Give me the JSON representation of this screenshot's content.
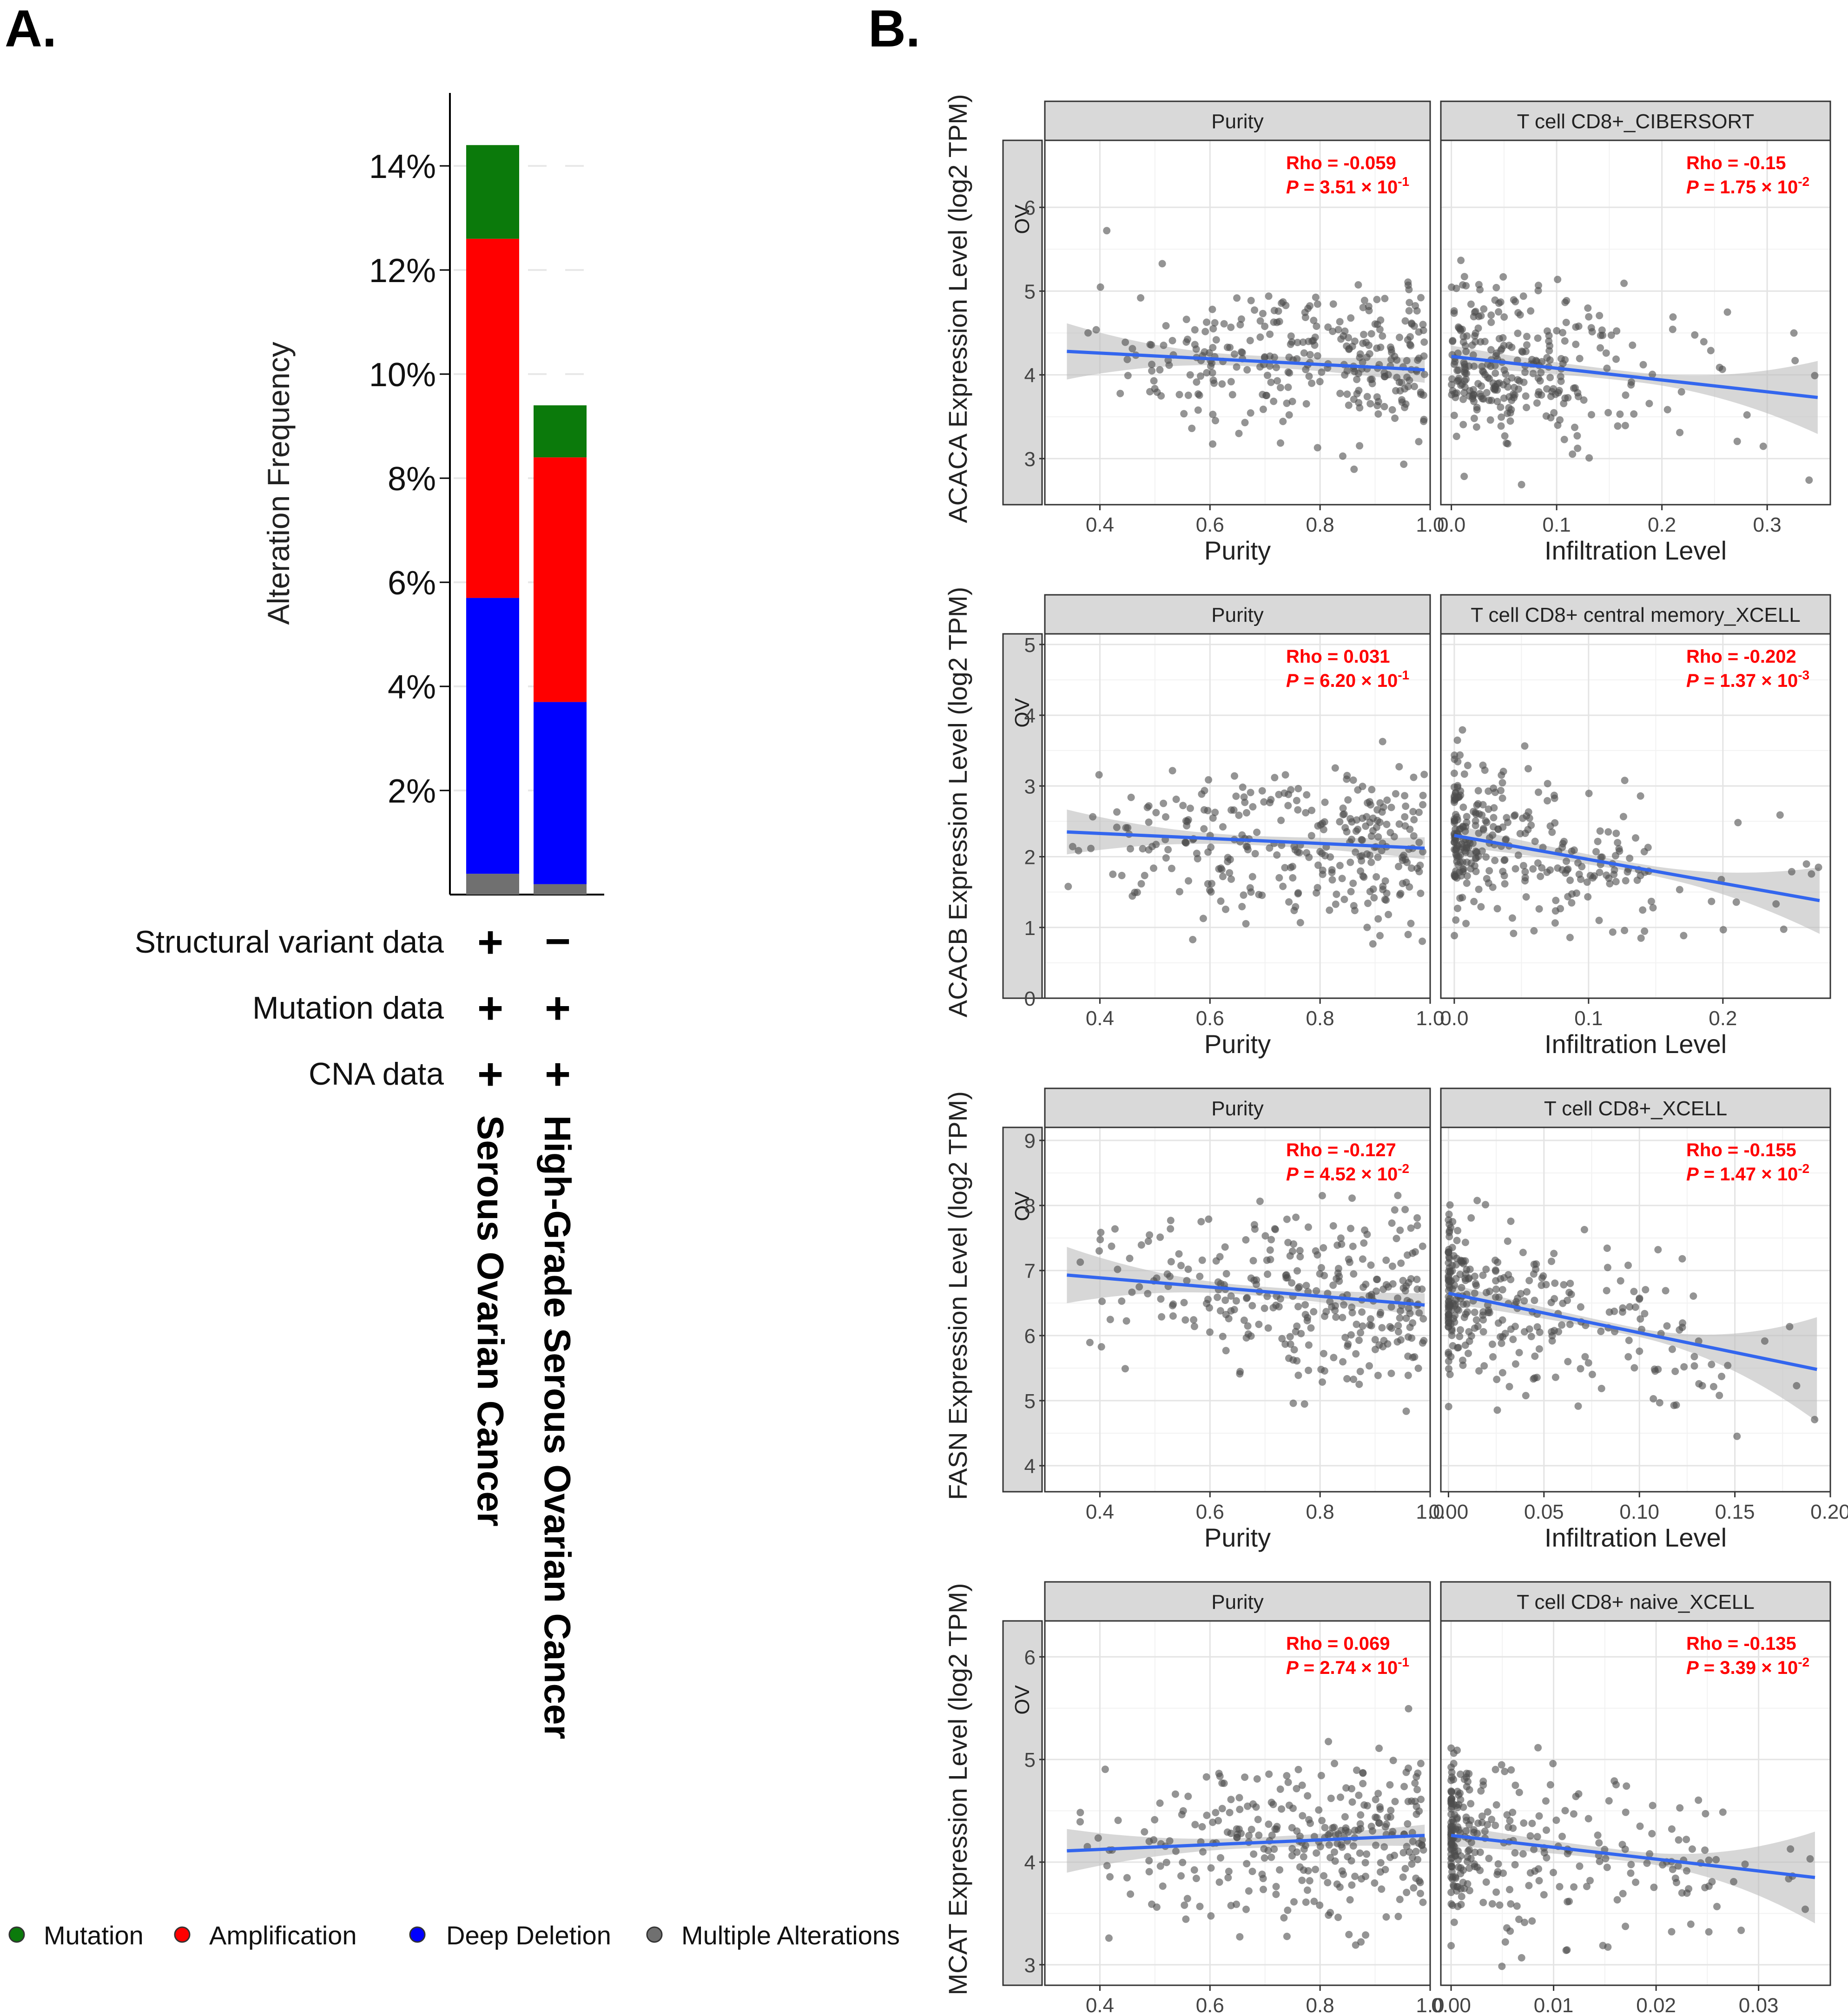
{
  "panel_a": {
    "label": "A.",
    "y_axis_label": "Alteration Frequency",
    "y_ticks": [
      "2%",
      "4%",
      "6%",
      "8%",
      "10%",
      "12%",
      "14%"
    ],
    "row_labels": [
      "Structural variant data",
      "Mutation data",
      "CNA data"
    ],
    "matrix": [
      [
        "+",
        "−"
      ],
      [
        "+",
        "+"
      ],
      [
        "+",
        "+"
      ]
    ],
    "categories": [
      "Serous Ovarian Cancer",
      "High-Grade Serous Ovarian Cancer"
    ],
    "legend": [
      {
        "label": "Mutation",
        "color": "#0b7a0b"
      },
      {
        "label": "Amplification",
        "color": "#ff0000"
      },
      {
        "label": "Deep Deletion",
        "color": "#0000ff"
      },
      {
        "label": "Multiple Alterations",
        "color": "#707070"
      }
    ]
  },
  "panel_b": {
    "label": "B.",
    "facet_row_label": "OV",
    "x_axis_left": "Purity",
    "x_axis_right": "Infiltration Level",
    "rows": [
      {
        "ylabel": "ACACA Expression Level (log2 TPM)",
        "left_title": "Purity",
        "right_title": "T cell CD8+_CIBERSORT",
        "left_rho": "Rho = -0.059",
        "left_p": "3.51 × 10",
        "left_exp": "-1",
        "right_rho": "Rho = -0.15",
        "right_p": "1.75 × 10",
        "right_exp": "-2"
      },
      {
        "ylabel": "ACACB Expression Level (log2 TPM)",
        "left_title": "Purity",
        "right_title": "T cell CD8+ central memory_XCELL",
        "left_rho": "Rho = 0.031",
        "left_p": "6.20 × 10",
        "left_exp": "-1",
        "right_rho": "Rho = -0.202",
        "right_p": "1.37 × 10",
        "right_exp": "-3"
      },
      {
        "ylabel": "FASN Expression Level (log2 TPM)",
        "left_title": "Purity",
        "right_title": "T cell CD8+_XCELL",
        "left_rho": "Rho = -0.127",
        "left_p": "4.52 × 10",
        "left_exp": "-2",
        "right_rho": "Rho = -0.155",
        "right_p": "1.47 × 10",
        "right_exp": "-2"
      },
      {
        "ylabel": "MCAT Expression Level (log2 TPM)",
        "left_title": "Purity",
        "right_title": "T cell CD8+ naive_XCELL",
        "left_rho": "Rho = 0.069",
        "left_p": "2.74 × 10",
        "left_exp": "-1",
        "right_rho": "Rho = -0.135",
        "right_p": "3.39 × 10",
        "right_exp": "-2"
      }
    ]
  },
  "chart_data": [
    {
      "type": "bar",
      "stacked": true,
      "categories": [
        "Serous Ovarian Cancer",
        "High-Grade Serous Ovarian Cancer"
      ],
      "ylabel": "Alteration Frequency",
      "ylim": [
        0,
        15
      ],
      "series": [
        {
          "name": "Multiple Alterations",
          "values": [
            0.4,
            0.2
          ]
        },
        {
          "name": "Deep Deletion",
          "values": [
            5.3,
            3.5
          ]
        },
        {
          "name": "Amplification",
          "values": [
            6.9,
            4.7
          ]
        },
        {
          "name": "Mutation",
          "values": [
            1.8,
            1.0
          ]
        }
      ]
    },
    {
      "type": "scatter",
      "title": "Purity",
      "gene": "ACACA",
      "ylabel": "ACACA Expression Level (log2 TPM)",
      "xlabel": "Purity",
      "xlim": [
        0.3,
        1.0
      ],
      "ylim": [
        2.45,
        6.8
      ],
      "xticks": [
        0.4,
        0.6,
        0.8,
        1.0
      ],
      "yticks": [
        3,
        4,
        5,
        6
      ],
      "rho": -0.059,
      "p": "3.51e-1",
      "fit": {
        "x": [
          0.34,
          0.99
        ],
        "y": [
          4.28,
          4.06
        ]
      },
      "band": [
        0.3,
        0.1
      ]
    },
    {
      "type": "scatter",
      "title": "T cell CD8+_CIBERSORT",
      "gene": "ACACA",
      "ylabel": "ACACA Expression Level (log2 TPM)",
      "xlabel": "Infiltration Level",
      "xlim": [
        -0.01,
        0.36
      ],
      "ylim": [
        2.45,
        6.8
      ],
      "xticks": [
        0.0,
        0.1,
        0.2,
        0.3
      ],
      "yticks": [
        3,
        4,
        5,
        6
      ],
      "rho": -0.15,
      "p": "1.75e-2",
      "fit": {
        "x": [
          0.0,
          0.348
        ],
        "y": [
          4.22,
          3.73
        ]
      },
      "band": [
        0.08,
        0.42
      ]
    },
    {
      "type": "scatter",
      "title": "Purity",
      "gene": "ACACB",
      "ylabel": "ACACB Expression Level (log2 TPM)",
      "xlabel": "Purity",
      "xlim": [
        0.3,
        1.0
      ],
      "ylim": [
        0,
        5.15
      ],
      "xticks": [
        0.4,
        0.6,
        0.8,
        1.0
      ],
      "yticks": [
        0,
        1,
        2,
        3,
        4,
        5
      ],
      "rho": 0.031,
      "p": "6.20e-1",
      "fit": {
        "x": [
          0.34,
          0.99
        ],
        "y": [
          2.35,
          2.12
        ]
      },
      "band": [
        0.28,
        0.1
      ]
    },
    {
      "type": "scatter",
      "title": "T cell CD8+ central memory_XCELL",
      "gene": "ACACB",
      "ylabel": "ACACB Expression Level (log2 TPM)",
      "xlabel": "Infiltration Level",
      "xlim": [
        -0.01,
        0.28
      ],
      "ylim": [
        0,
        5.15
      ],
      "xticks": [
        0.0,
        0.1,
        0.2
      ],
      "yticks": [
        0,
        1,
        2,
        3,
        4,
        5
      ],
      "rho": -0.202,
      "p": "1.37e-3",
      "fit": {
        "x": [
          0.0,
          0.272
        ],
        "y": [
          2.3,
          1.38
        ]
      },
      "band": [
        0.1,
        0.45
      ]
    },
    {
      "type": "scatter",
      "title": "Purity",
      "gene": "FASN",
      "ylabel": "FASN Expression Level (log2 TPM)",
      "xlabel": "Purity",
      "xlim": [
        0.3,
        1.0
      ],
      "ylim": [
        3.6,
        9.2
      ],
      "xticks": [
        0.4,
        0.6,
        0.8,
        1.0
      ],
      "yticks": [
        4,
        5,
        6,
        7,
        8,
        9
      ],
      "rho": -0.127,
      "p": "4.52e-2",
      "fit": {
        "x": [
          0.34,
          0.99
        ],
        "y": [
          6.93,
          6.47
        ]
      },
      "band": [
        0.4,
        0.12
      ]
    },
    {
      "type": "scatter",
      "title": "T cell CD8+_XCELL",
      "gene": "FASN",
      "ylabel": "FASN Expression Level (log2 TPM)",
      "xlabel": "Infiltration Level",
      "xlim": [
        -0.004,
        0.2
      ],
      "ylim": [
        3.6,
        9.2
      ],
      "xticks": [
        0.0,
        0.05,
        0.1,
        0.15,
        0.2
      ],
      "yticks": [
        4,
        5,
        6,
        7,
        8,
        9
      ],
      "rho": -0.155,
      "p": "1.47e-2",
      "fit": {
        "x": [
          0.0,
          0.193
        ],
        "y": [
          6.65,
          5.48
        ]
      },
      "band": [
        0.1,
        0.82
      ]
    },
    {
      "type": "scatter",
      "title": "Purity",
      "gene": "MCAT",
      "ylabel": "MCAT Expression Level (log2 TPM)",
      "xlabel": "Purity",
      "xlim": [
        0.3,
        1.0
      ],
      "ylim": [
        2.8,
        6.35
      ],
      "xticks": [
        0.4,
        0.6,
        0.8,
        1.0
      ],
      "yticks": [
        3,
        4,
        5,
        6
      ],
      "rho": 0.069,
      "p": "2.74e-1",
      "fit": {
        "x": [
          0.34,
          0.99
        ],
        "y": [
          4.11,
          4.26
        ]
      },
      "band": [
        0.18,
        0.06
      ]
    },
    {
      "type": "scatter",
      "title": "T cell CD8+ naive_XCELL",
      "gene": "MCAT",
      "ylabel": "MCAT Expression Level (log2 TPM)",
      "xlabel": "Infiltration Level",
      "xlim": [
        -0.001,
        0.037
      ],
      "ylim": [
        2.8,
        6.35
      ],
      "xticks": [
        0.0,
        0.01,
        0.02,
        0.03
      ],
      "yticks": [
        3,
        4,
        5,
        6
      ],
      "rho": -0.135,
      "p": "3.39e-2",
      "fit": {
        "x": [
          0.0,
          0.0355
        ],
        "y": [
          4.26,
          3.85
        ]
      },
      "band": [
        0.06,
        0.44
      ]
    }
  ]
}
